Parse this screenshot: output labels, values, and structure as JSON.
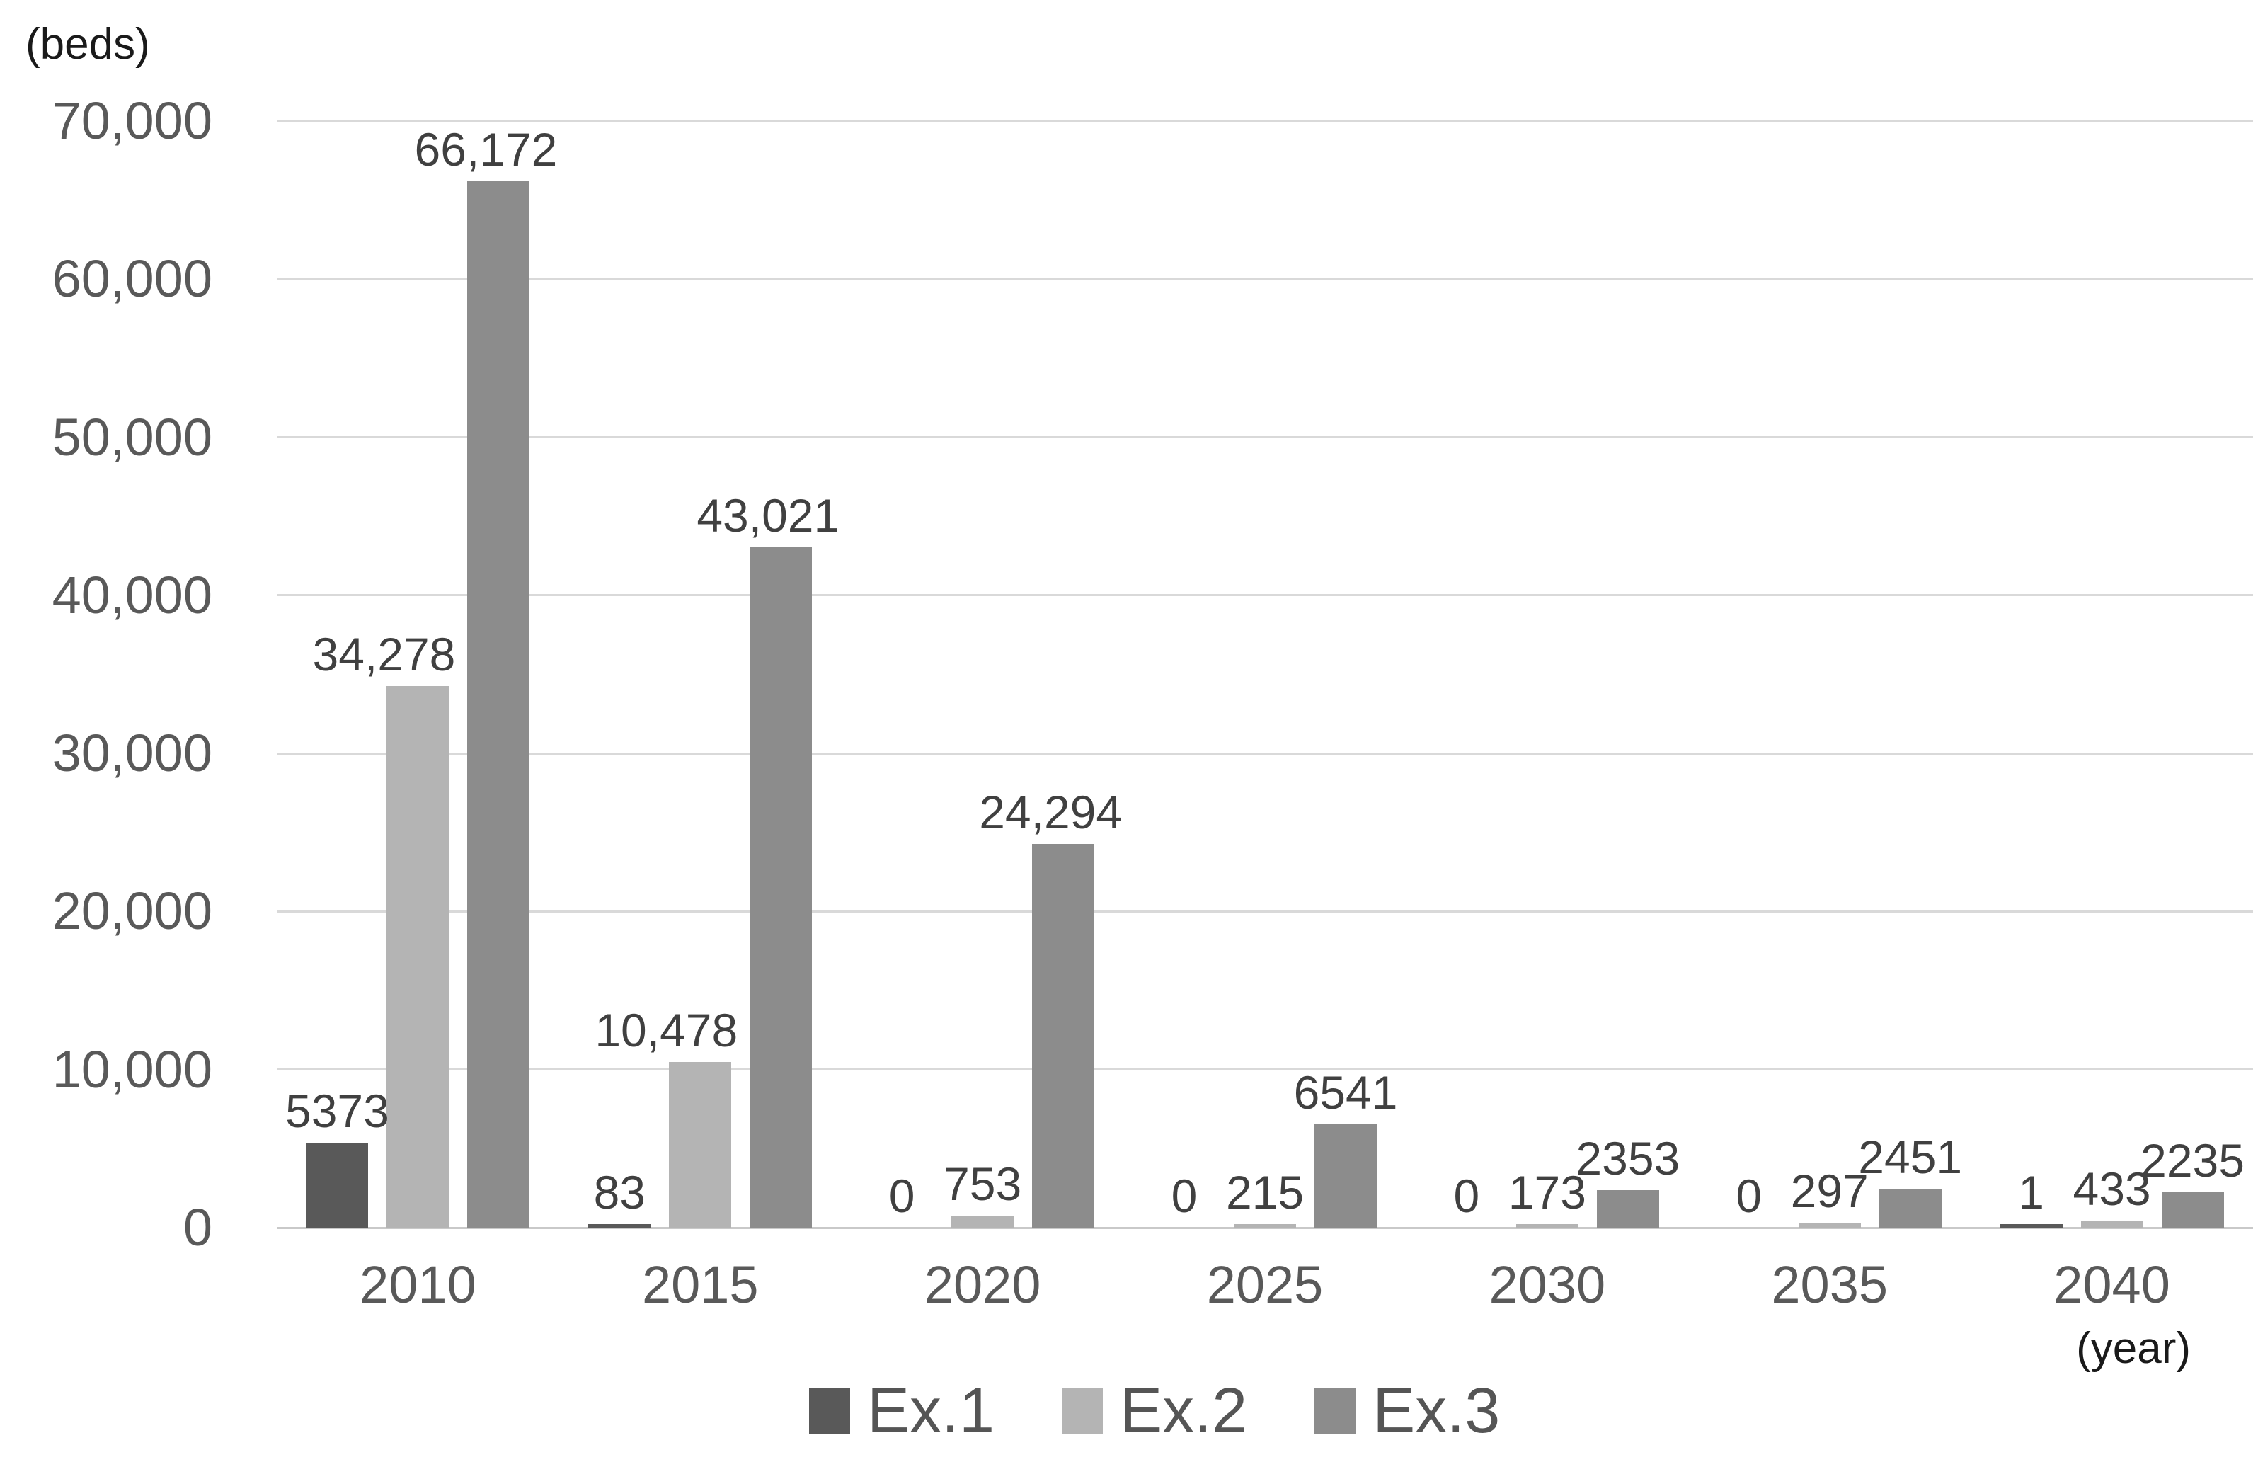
{
  "chart": {
    "y_unit_label": "(beds)",
    "x_unit_label": "(year)",
    "colors": {
      "ex1": "#595959",
      "ex2": "#b4b4b4",
      "ex3": "#8c8c8c",
      "gridline": "#d9d9d9",
      "axis_line": "#c9c9c9",
      "tick_text": "#595959",
      "data_label_text": "#404040",
      "unit_text": "#1a1a1a",
      "legend_text": "#555555"
    }
  },
  "chart_data": {
    "type": "bar",
    "title": "",
    "xlabel": "(year)",
    "ylabel": "(beds)",
    "categories": [
      "2010",
      "2015",
      "2020",
      "2025",
      "2030",
      "2035",
      "2040"
    ],
    "series": [
      {
        "name": "Ex.1",
        "color_key": "ex1",
        "values": [
          5373,
          83,
          0,
          0,
          0,
          0,
          1
        ],
        "labels": [
          "5373",
          "83",
          "0",
          "0",
          "0",
          "0",
          "1"
        ]
      },
      {
        "name": "Ex.2",
        "color_key": "ex2",
        "values": [
          34278,
          10478,
          753,
          215,
          173,
          297,
          433
        ],
        "labels": [
          "34,278",
          "10,478",
          "753",
          "215",
          "173",
          "297",
          "433"
        ]
      },
      {
        "name": "Ex.3",
        "color_key": "ex3",
        "values": [
          66172,
          43021,
          24294,
          6541,
          2353,
          2451,
          2235
        ],
        "labels": [
          "66,172",
          "43,021",
          "24,294",
          "6541",
          "2353",
          "2451",
          "2235"
        ]
      }
    ],
    "ylim": [
      0,
      70000
    ],
    "yticks": [
      {
        "value": 0,
        "label": "0"
      },
      {
        "value": 10000,
        "label": "10,000"
      },
      {
        "value": 20000,
        "label": "20,000"
      },
      {
        "value": 30000,
        "label": "30,000"
      },
      {
        "value": 40000,
        "label": "40,000"
      },
      {
        "value": 50000,
        "label": "50,000"
      },
      {
        "value": 60000,
        "label": "60,000"
      },
      {
        "value": 70000,
        "label": "70,000"
      }
    ],
    "grid": true,
    "legend_position": "bottom",
    "data_labels": "outside-end"
  }
}
